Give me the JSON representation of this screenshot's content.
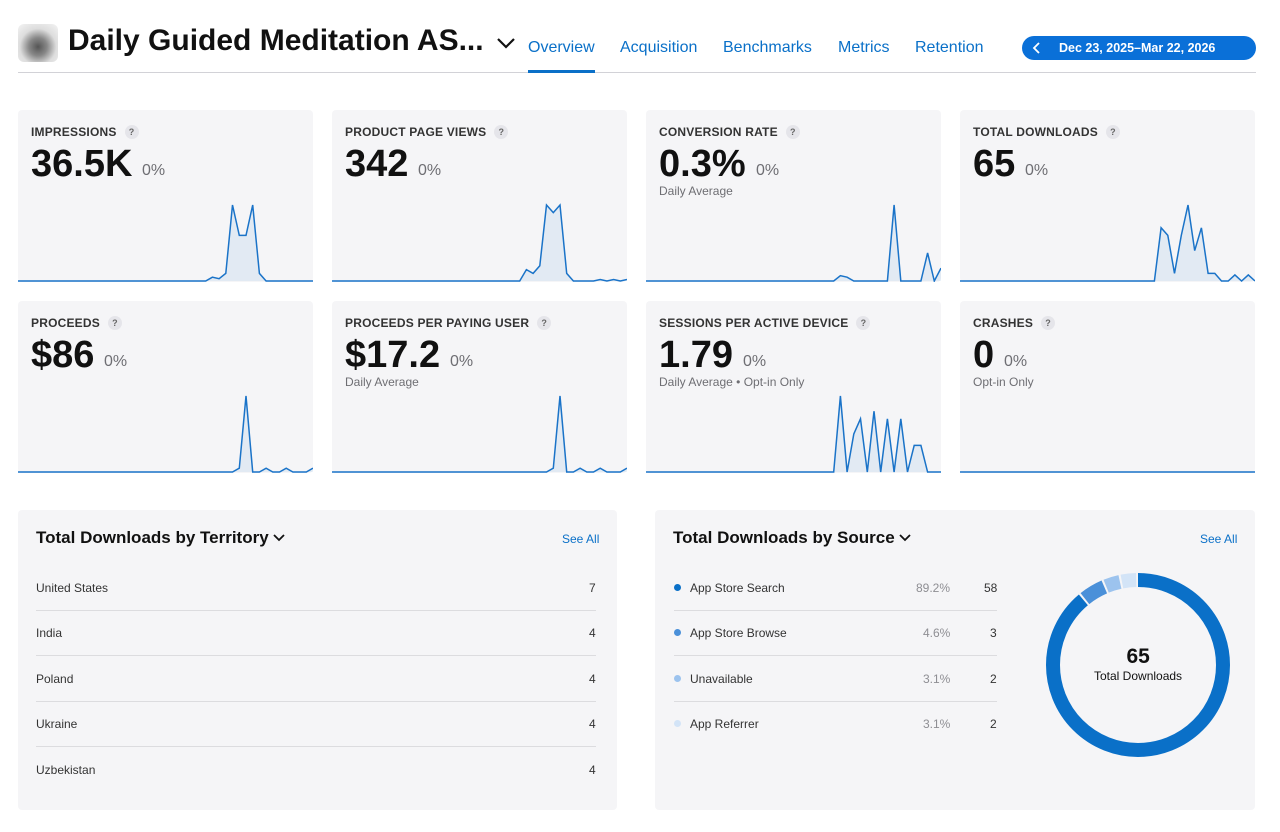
{
  "header": {
    "app_name": "Daily Guided Meditation AS...",
    "tabs": [
      "Overview",
      "Acquisition",
      "Benchmarks",
      "Metrics",
      "Retention"
    ],
    "active_tab": 0,
    "date_range": "Dec 23, 2025–Mar 22, 2026"
  },
  "help_icon": "?",
  "metrics": [
    {
      "label": "IMPRESSIONS",
      "value": "36.5K",
      "change": "0%",
      "trend": [
        0,
        0,
        0,
        0,
        0,
        0,
        0,
        0,
        0,
        0,
        0,
        0,
        0,
        0,
        0,
        0,
        0,
        0,
        0,
        0,
        0,
        0,
        0,
        0,
        0,
        0,
        0,
        0,
        0,
        0.5,
        0.3,
        1,
        10,
        6,
        6,
        10,
        1,
        0,
        0,
        0,
        0,
        0,
        0,
        0,
        0
      ]
    },
    {
      "label": "PRODUCT PAGE VIEWS",
      "value": "342",
      "change": "0%",
      "trend": [
        0,
        0,
        0,
        0,
        0,
        0,
        0,
        0,
        0,
        0,
        0,
        0,
        0,
        0,
        0,
        0,
        0,
        0,
        0,
        0,
        0,
        0,
        0,
        0,
        0,
        0,
        0,
        0,
        0,
        1.5,
        1,
        2,
        10,
        9,
        10,
        1,
        0,
        0,
        0,
        0,
        0.2,
        0,
        0.2,
        0,
        0.2
      ]
    },
    {
      "label": "CONVERSION RATE",
      "value": "0.3%",
      "change": "0%",
      "note": "Daily Average",
      "trend": [
        0,
        0,
        0,
        0,
        0,
        0,
        0,
        0,
        0,
        0,
        0,
        0,
        0,
        0,
        0,
        0,
        0,
        0,
        0,
        0,
        0,
        0,
        0,
        0,
        0,
        0,
        0,
        0,
        0,
        0.7,
        0.5,
        0,
        0,
        0,
        0,
        0,
        0,
        10,
        0,
        0,
        0,
        0,
        3.7,
        0,
        1.7
      ]
    },
    {
      "label": "TOTAL DOWNLOADS",
      "value": "65",
      "change": "0%",
      "trend": [
        0,
        0,
        0,
        0,
        0,
        0,
        0,
        0,
        0,
        0,
        0,
        0,
        0,
        0,
        0,
        0,
        0,
        0,
        0,
        0,
        0,
        0,
        0,
        0,
        0,
        0,
        0,
        0,
        0,
        0,
        7,
        6,
        1,
        6,
        10,
        4,
        7,
        1,
        1,
        0,
        0,
        0.8,
        0,
        0.8,
        0
      ]
    },
    {
      "label": "PROCEEDS",
      "value": "$86",
      "change": "0%",
      "trend": [
        0,
        0,
        0,
        0,
        0,
        0,
        0,
        0,
        0,
        0,
        0,
        0,
        0,
        0,
        0,
        0,
        0,
        0,
        0,
        0,
        0,
        0,
        0,
        0,
        0,
        0,
        0,
        0,
        0,
        0,
        0,
        0,
        0,
        0.5,
        10,
        0,
        0,
        0.5,
        0,
        0,
        0.5,
        0,
        0,
        0,
        0.5
      ]
    },
    {
      "label": "PROCEEDS PER PAYING USER",
      "value": "$17.2",
      "change": "0%",
      "note": "Daily Average",
      "trend": [
        0,
        0,
        0,
        0,
        0,
        0,
        0,
        0,
        0,
        0,
        0,
        0,
        0,
        0,
        0,
        0,
        0,
        0,
        0,
        0,
        0,
        0,
        0,
        0,
        0,
        0,
        0,
        0,
        0,
        0,
        0,
        0,
        0,
        0.5,
        10,
        0,
        0,
        0.5,
        0,
        0,
        0.5,
        0,
        0,
        0,
        0.5
      ]
    },
    {
      "label": "SESSIONS PER ACTIVE DEVICE",
      "value": "1.79",
      "change": "0%",
      "note": "Daily Average • Opt-in Only",
      "trend": [
        0,
        0,
        0,
        0,
        0,
        0,
        0,
        0,
        0,
        0,
        0,
        0,
        0,
        0,
        0,
        0,
        0,
        0,
        0,
        0,
        0,
        0,
        0,
        0,
        0,
        0,
        0,
        0,
        0,
        10,
        0,
        5,
        7,
        0,
        8,
        0,
        7,
        0,
        7,
        0,
        3.5,
        3.5,
        0,
        0,
        0
      ]
    },
    {
      "label": "CRASHES",
      "value": "0",
      "change": "0%",
      "note": "Opt-in Only",
      "trend": [
        0,
        0,
        0,
        0,
        0,
        0,
        0,
        0,
        0,
        0,
        0,
        0,
        0,
        0,
        0,
        0,
        0,
        0,
        0,
        0,
        0,
        0,
        0,
        0,
        0,
        0,
        0,
        0,
        0,
        0,
        0,
        0,
        0,
        0,
        0,
        0,
        0,
        0,
        0,
        0,
        0,
        0,
        0,
        0,
        0
      ]
    }
  ],
  "territory": {
    "title": "Total Downloads by Territory",
    "see_all": "See All",
    "rows": [
      {
        "name": "United States",
        "count": 7
      },
      {
        "name": "India",
        "count": 4
      },
      {
        "name": "Poland",
        "count": 4
      },
      {
        "name": "Ukraine",
        "count": 4
      },
      {
        "name": "Uzbekistan",
        "count": 4
      }
    ]
  },
  "source": {
    "title": "Total Downloads by Source",
    "see_all": "See All",
    "total": "65",
    "total_label": "Total Downloads",
    "rows": [
      {
        "name": "App Store Search",
        "percent": "89.2%",
        "count": 58,
        "color": "#0a70c8"
      },
      {
        "name": "App Store Browse",
        "percent": "4.6%",
        "count": 3,
        "color": "#4a90d9"
      },
      {
        "name": "Unavailable",
        "percent": "3.1%",
        "count": 2,
        "color": "#9cc3ee"
      },
      {
        "name": "App Referrer",
        "percent": "3.1%",
        "count": 2,
        "color": "#d3e4f7"
      }
    ]
  }
}
